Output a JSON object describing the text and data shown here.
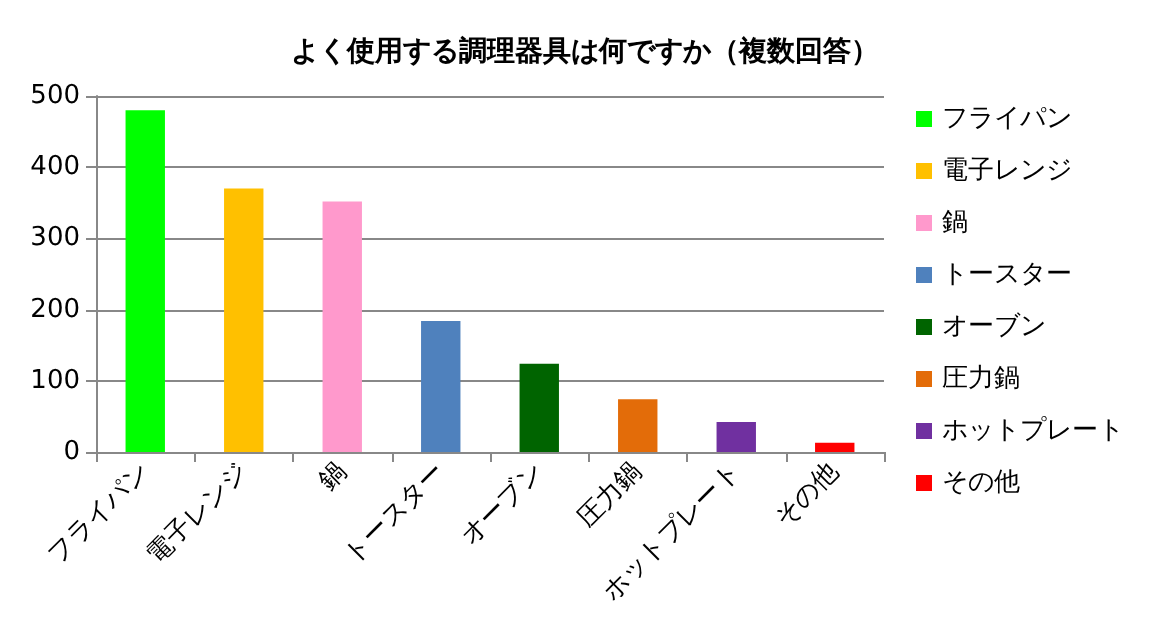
{
  "chart_data": {
    "type": "bar",
    "title": "よく使用する調理器具は何ですか（複数回答）",
    "categories": [
      "フライパン",
      "電子レンジ",
      "鍋",
      "トースター",
      "オーブン",
      "圧力鍋",
      "ホットプレート",
      "その他"
    ],
    "series": [
      {
        "name": "フライパン",
        "color": "#00ff00",
        "values": [
          480,
          null,
          null,
          null,
          null,
          null,
          null,
          null
        ]
      },
      {
        "name": "電子レンジ",
        "color": "#ffc000",
        "values": [
          null,
          370,
          null,
          null,
          null,
          null,
          null,
          null
        ]
      },
      {
        "name": "鍋",
        "color": "#ff99cc",
        "values": [
          null,
          null,
          352,
          null,
          null,
          null,
          null,
          null
        ]
      },
      {
        "name": "トースター",
        "color": "#4f81bd",
        "values": [
          null,
          null,
          null,
          184,
          null,
          null,
          null,
          null
        ]
      },
      {
        "name": "オーブン",
        "color": "#006400",
        "values": [
          null,
          null,
          null,
          null,
          124,
          null,
          null,
          null
        ]
      },
      {
        "name": "圧力鍋",
        "color": "#e36c09",
        "values": [
          null,
          null,
          null,
          null,
          null,
          74,
          null,
          null
        ]
      },
      {
        "name": "ホットプレート",
        "color": "#7030a0",
        "values": [
          null,
          null,
          null,
          null,
          null,
          null,
          42,
          null
        ]
      },
      {
        "name": "その他",
        "color": "#ff0000",
        "values": [
          null,
          null,
          null,
          null,
          null,
          null,
          null,
          13
        ]
      }
    ],
    "ylim": [
      0,
      500
    ],
    "yticks": [
      0,
      100,
      200,
      300,
      400,
      500
    ],
    "grid": "y",
    "legend": "right"
  }
}
